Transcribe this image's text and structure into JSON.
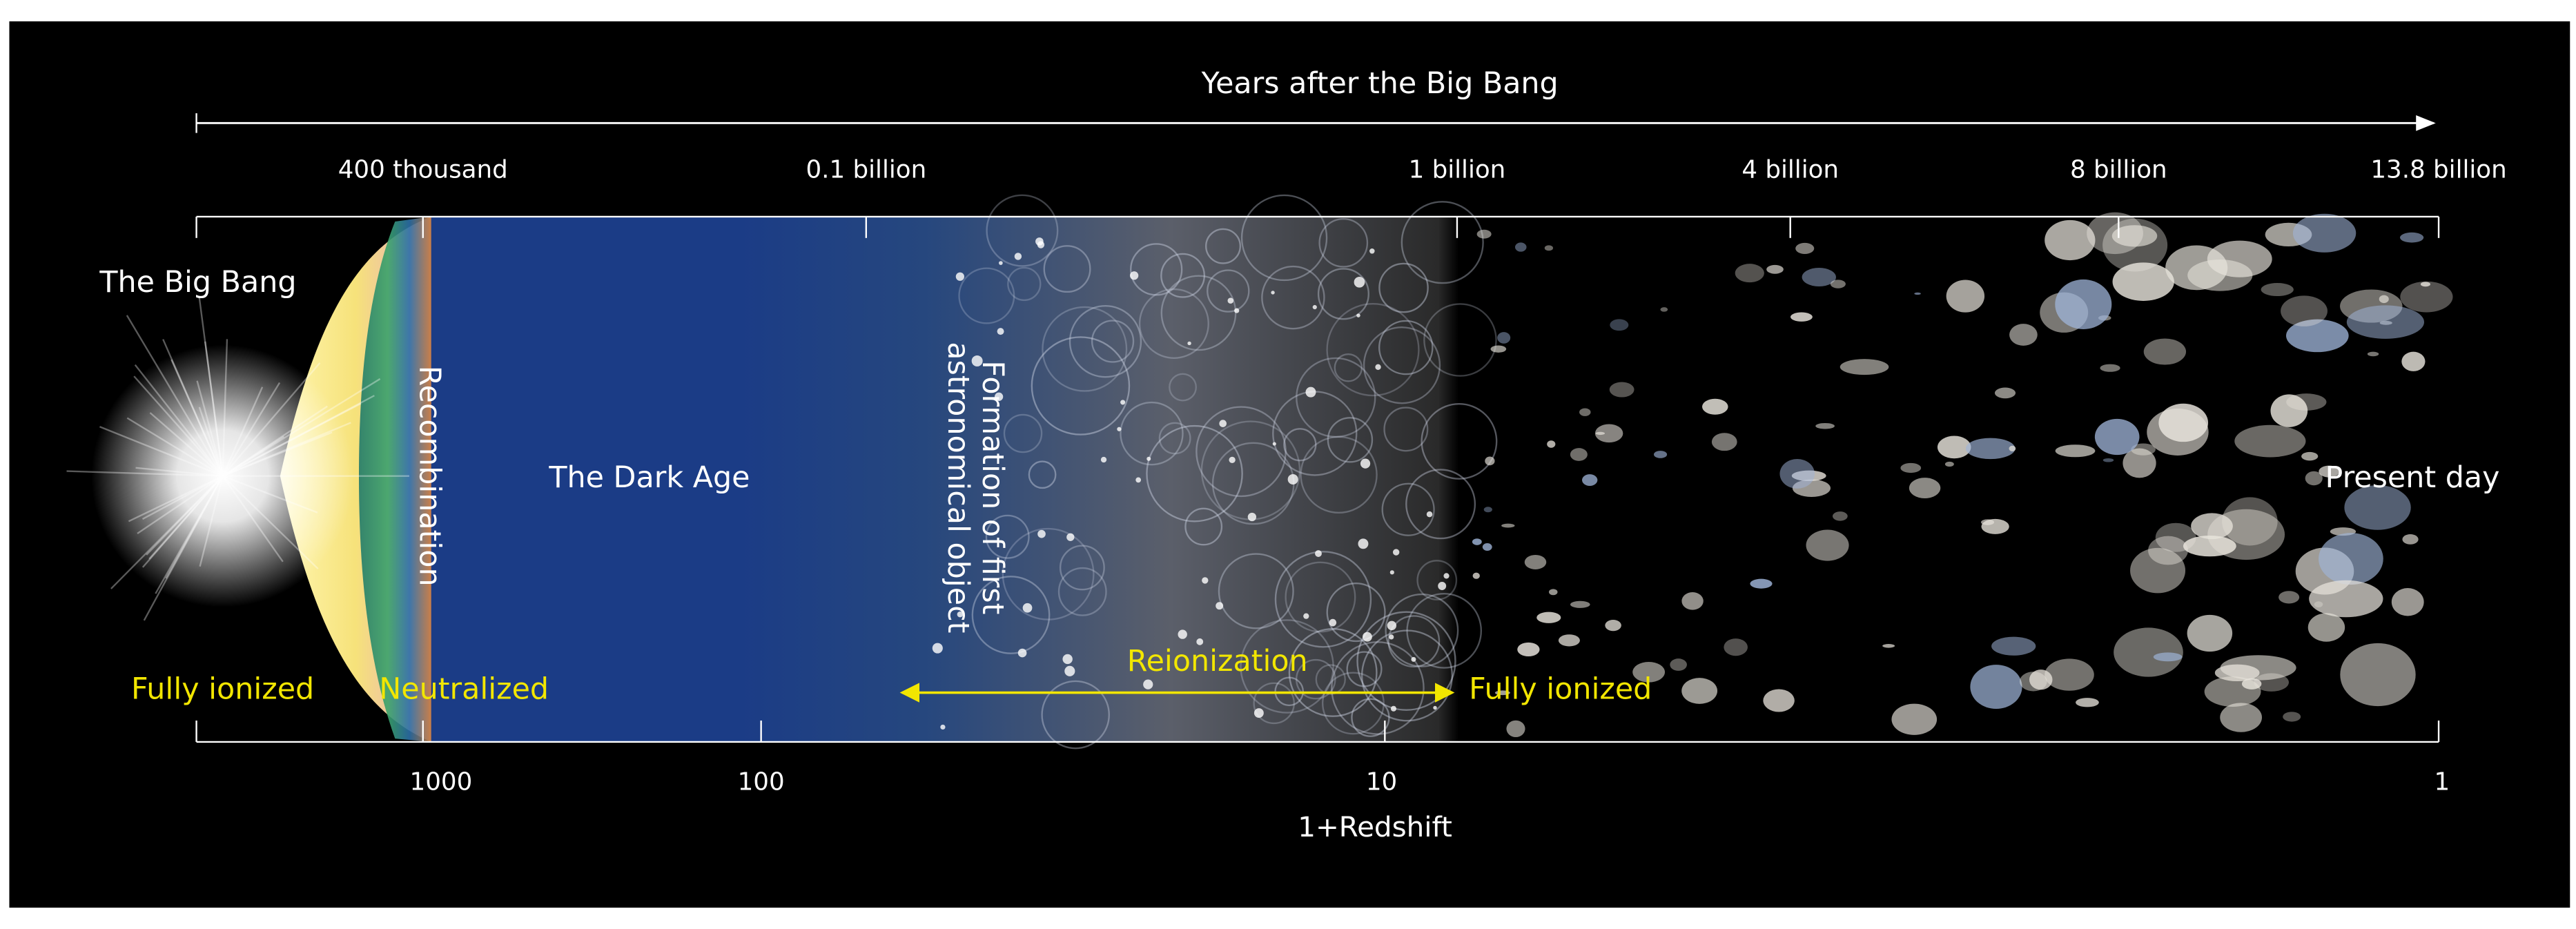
{
  "title": "Years after the Big Bang",
  "top_axis": {
    "ticks": [
      "400 thousand",
      "0.1 billion",
      "1 billion",
      "4 billion",
      "8 billion",
      "13.8 billion"
    ]
  },
  "bottom_axis": {
    "ticks": [
      "1000",
      "100",
      "10",
      "1"
    ],
    "label": "1+Redshift"
  },
  "eras": {
    "big_bang": "The Big Bang",
    "recombination": "Recombination",
    "dark_age": "The Dark Age",
    "first_objects": [
      "Formation of first",
      "astronomical object"
    ],
    "present_day": "Present day"
  },
  "states": {
    "fully_ionized_early": "Fully ionized",
    "neutralized": "Neutralized",
    "reionization": "Reionization",
    "fully_ionized_late": "Fully ionized"
  }
}
